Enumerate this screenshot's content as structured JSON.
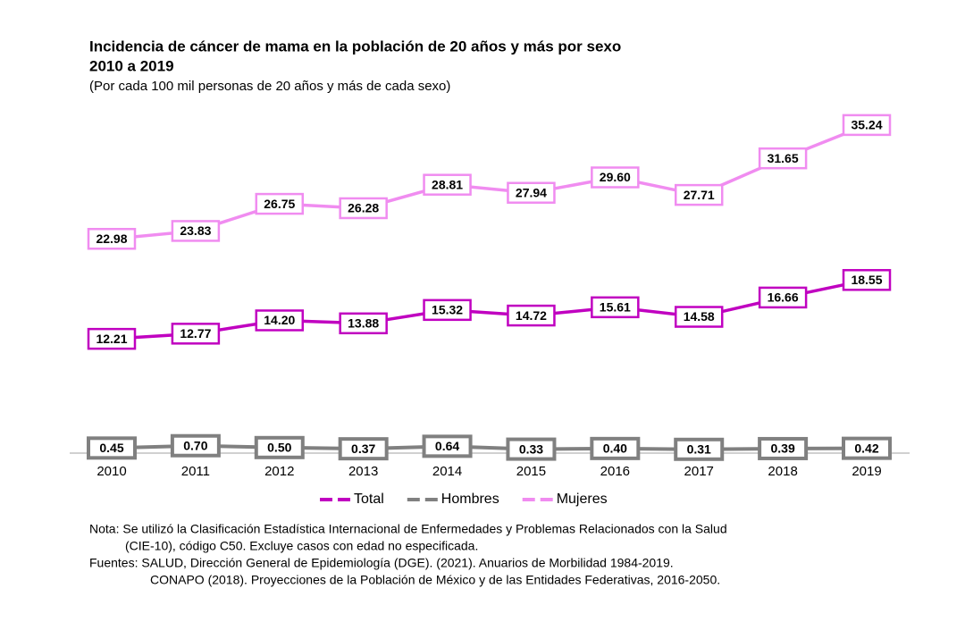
{
  "chart_data": {
    "type": "line",
    "title": [
      "Incidencia de cáncer de mama en la población de 20 años y más por sexo",
      "2010 a 2019"
    ],
    "subtitle": "(Por cada 100 mil personas de 20 años y más de cada sexo)",
    "categories": [
      "2010",
      "2011",
      "2012",
      "2013",
      "2014",
      "2015",
      "2016",
      "2017",
      "2018",
      "2019"
    ],
    "ylim": [
      0,
      36
    ],
    "series": [
      {
        "name": "Total",
        "color": "#c000c0",
        "values": [
          12.21,
          12.77,
          14.2,
          13.88,
          15.32,
          14.72,
          15.61,
          14.58,
          16.66,
          18.55
        ],
        "value_labels": [
          "12.21",
          "12.77",
          "14.20",
          "13.88",
          "15.32",
          "14.72",
          "15.61",
          "14.58",
          "16.66",
          "18.55"
        ]
      },
      {
        "name": "Hombres",
        "color": "#808080",
        "values": [
          0.45,
          0.7,
          0.5,
          0.37,
          0.64,
          0.33,
          0.4,
          0.31,
          0.39,
          0.42
        ],
        "value_labels": [
          "0.45",
          "0.70",
          "0.50",
          "0.37",
          "0.64",
          "0.33",
          "0.40",
          "0.31",
          "0.39",
          "0.42"
        ]
      },
      {
        "name": "Mujeres",
        "color": "#f08cf0",
        "values": [
          22.98,
          23.83,
          26.75,
          26.28,
          28.81,
          27.94,
          29.6,
          27.71,
          31.65,
          35.24
        ],
        "value_labels": [
          "22.98",
          "23.83",
          "26.75",
          "26.28",
          "28.81",
          "27.94",
          "29.60",
          "27.71",
          "31.65",
          "35.24"
        ]
      }
    ]
  },
  "notes": [
    "Nota:  Se utilizó la Clasificación Estadística Internacional de Enfermedades y Problemas Relacionados con la Salud",
    "(CIE-10), código C50. Excluye casos con edad no especificada.",
    "Fuentes: SALUD, Dirección General de Epidemiología (DGE). (2021). Anuarios de Morbilidad 1984-2019.",
    "CONAPO (2018). Proyecciones de la Población de México y de las Entidades Federativas, 2016-2050."
  ]
}
